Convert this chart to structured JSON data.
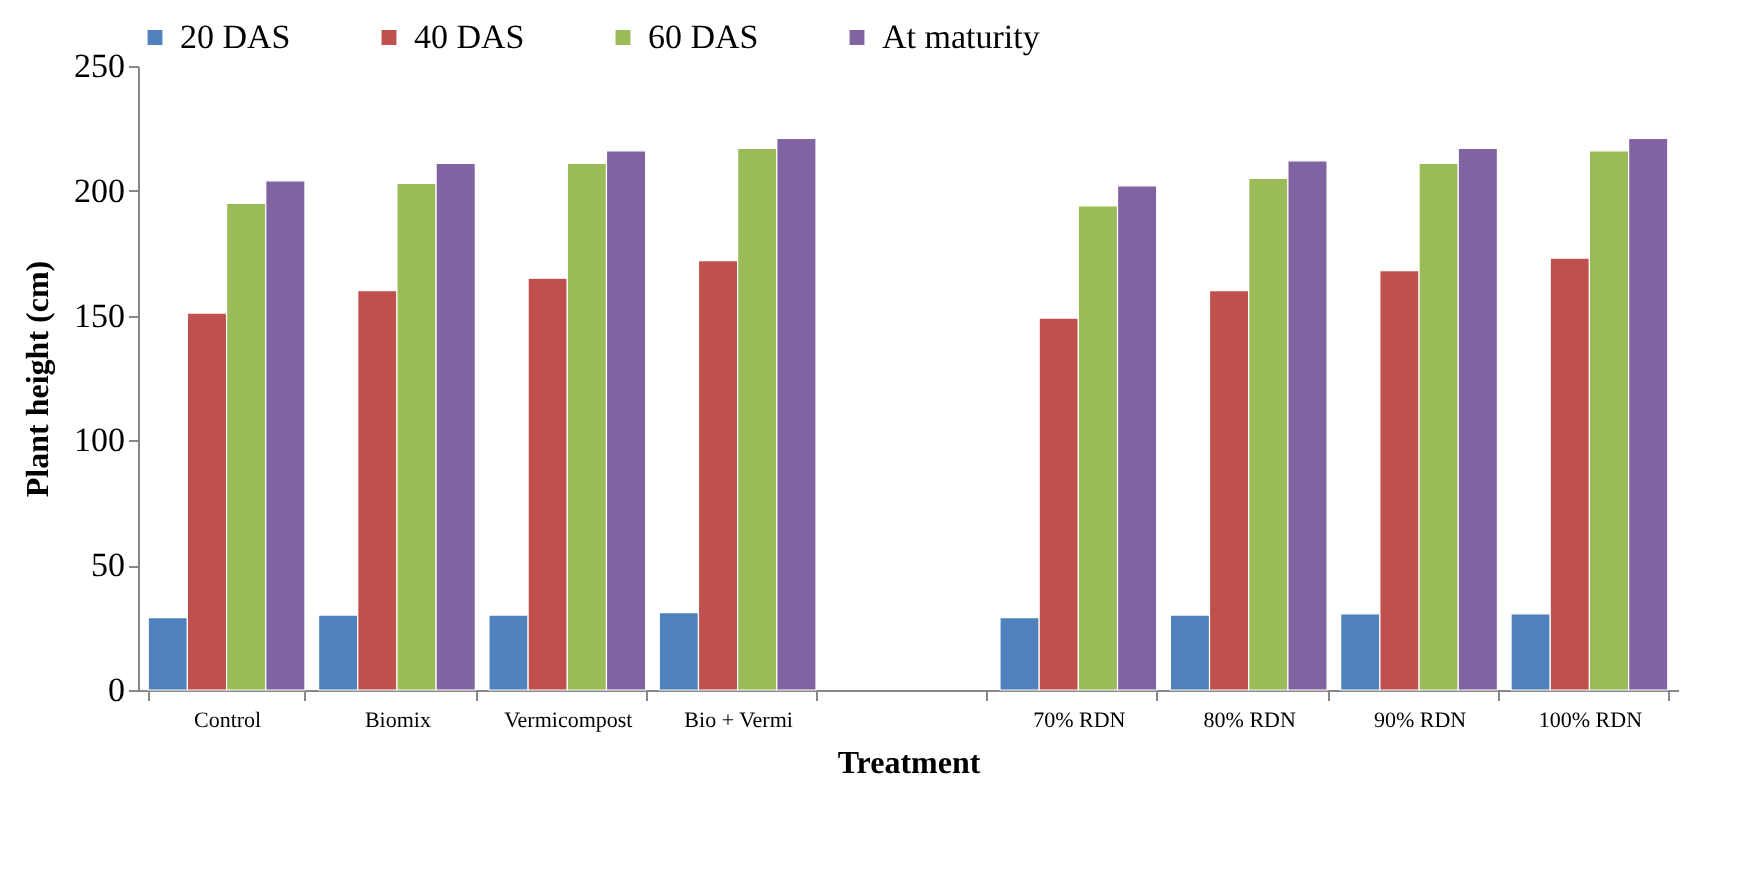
{
  "chart_data": {
    "type": "bar",
    "xlabel": "Treatment",
    "ylabel": "Plant height (cm)",
    "categories": [
      "Control",
      "Biomix",
      "Vermicompost",
      "Bio +  Vermi",
      null,
      "70% RDN",
      "80% RDN",
      "90% RDN",
      "100% RDN"
    ],
    "series": [
      {
        "name": "20 DAS",
        "color": "#4f81bd",
        "values": [
          29,
          30,
          30,
          31,
          null,
          29,
          30,
          30.5,
          30.5
        ]
      },
      {
        "name": "40 DAS",
        "color": "#c0504d",
        "values": [
          151,
          160,
          165,
          172,
          null,
          149,
          160,
          168,
          173
        ]
      },
      {
        "name": "60 DAS",
        "color": "#9bbb59",
        "values": [
          195,
          203,
          211,
          217,
          null,
          194,
          205,
          211,
          216
        ]
      },
      {
        "name": "At  maturity",
        "color": "#8064a2",
        "values": [
          204,
          211,
          216,
          221,
          null,
          202,
          212,
          217,
          221
        ]
      }
    ],
    "ylim": [
      0,
      250
    ],
    "yticks": [
      0,
      50,
      100,
      150,
      200,
      250
    ],
    "grid": false,
    "legend": "top"
  }
}
